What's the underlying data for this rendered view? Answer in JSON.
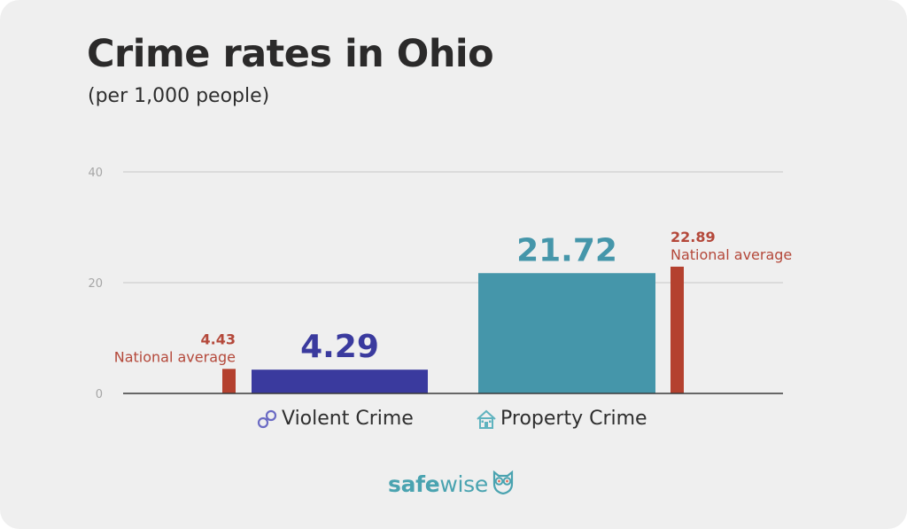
{
  "header": {
    "title": "Crime rates in Ohio",
    "subtitle": "(per 1,000 people)"
  },
  "logo": {
    "text_bold": "safe",
    "text_light": "wise",
    "icon": "owl-icon"
  },
  "colors": {
    "background": "#efefef",
    "violent": "#3a3a9e",
    "property": "#4596aa",
    "national": "#b4412f",
    "gridline": "#cfcfcf",
    "baseline": "#3a3a3a",
    "logo": "#4aa3b0"
  },
  "chart_data": {
    "type": "bar",
    "title": "Crime rates in Ohio",
    "subtitle": "(per 1,000 people)",
    "xlabel": "",
    "ylabel": "",
    "ylim": [
      0,
      40
    ],
    "yticks": [
      0,
      20,
      40
    ],
    "ytick_labels": [
      "0",
      "20",
      "40"
    ],
    "grid": true,
    "categories": [
      "Violent Crime",
      "Property Crime"
    ],
    "category_icons": [
      "handcuffs-icon",
      "house-icon"
    ],
    "series": [
      {
        "name": "Ohio",
        "values": [
          4.29
        ],
        "labels": [
          "4.29"
        ],
        "category": "Violent Crime",
        "color": "#3a3a9e"
      },
      {
        "name": "Ohio",
        "values": [
          21.72
        ],
        "labels": [
          "21.72"
        ],
        "category": "Property Crime",
        "color": "#4596aa"
      }
    ],
    "national_average": {
      "name": "National average",
      "values": [
        4.43,
        22.89
      ],
      "labels": [
        "4.43",
        "22.89"
      ],
      "text": "National average",
      "color": "#b4412f"
    }
  }
}
